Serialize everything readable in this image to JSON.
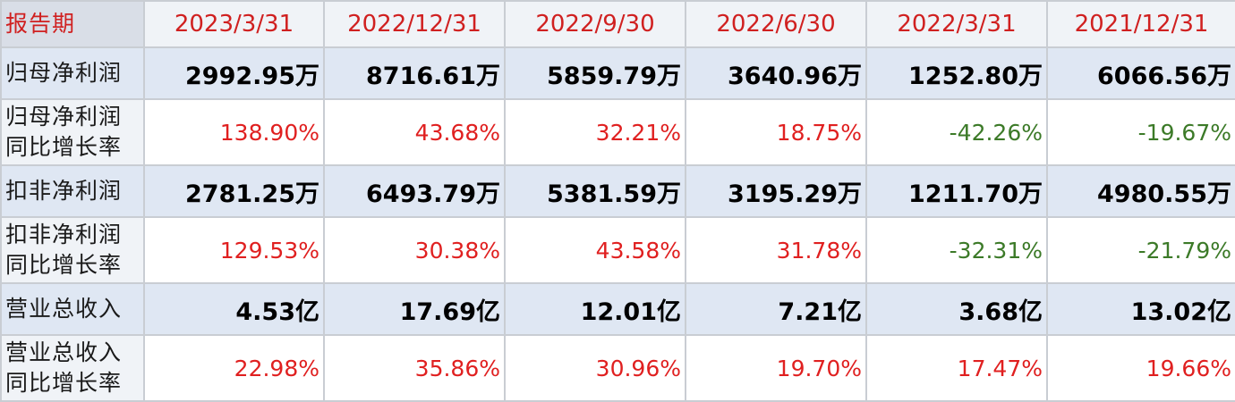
{
  "header": {
    "label": "报告期",
    "periods": [
      "2023/3/31",
      "2022/12/31",
      "2022/9/30",
      "2022/6/30",
      "2022/3/31",
      "2021/12/31"
    ]
  },
  "rows": [
    {
      "label_line1": "归母净利润",
      "values": [
        "2992.95万",
        "8716.61万",
        "5859.79万",
        "3640.96万",
        "1252.80万",
        "6066.56万"
      ]
    },
    {
      "label_line1": "归母净利润",
      "label_line2": "同比增长率",
      "values": [
        "138.90%",
        "43.68%",
        "32.21%",
        "18.75%",
        "-42.26%",
        "-19.67%"
      ]
    },
    {
      "label_line1": "扣非净利润",
      "values": [
        "2781.25万",
        "6493.79万",
        "5381.59万",
        "3195.29万",
        "1211.70万",
        "4980.55万"
      ]
    },
    {
      "label_line1": "扣非净利润",
      "label_line2": "同比增长率",
      "values": [
        "129.53%",
        "30.38%",
        "43.58%",
        "31.78%",
        "-32.31%",
        "-21.79%"
      ]
    },
    {
      "label_line1": "营业总收入",
      "values": [
        "4.53亿",
        "17.69亿",
        "12.01亿",
        "7.21亿",
        "3.68亿",
        "13.02亿"
      ]
    },
    {
      "label_line1": "营业总收入",
      "label_line2": "同比增长率",
      "values": [
        "22.98%",
        "35.86%",
        "30.96%",
        "19.70%",
        "17.47%",
        "19.66%"
      ]
    }
  ],
  "colors": {
    "header_text": "#d02020",
    "positive": "#e02020",
    "negative": "#3c7a28",
    "value_row_bg": "#dfe7f3"
  }
}
